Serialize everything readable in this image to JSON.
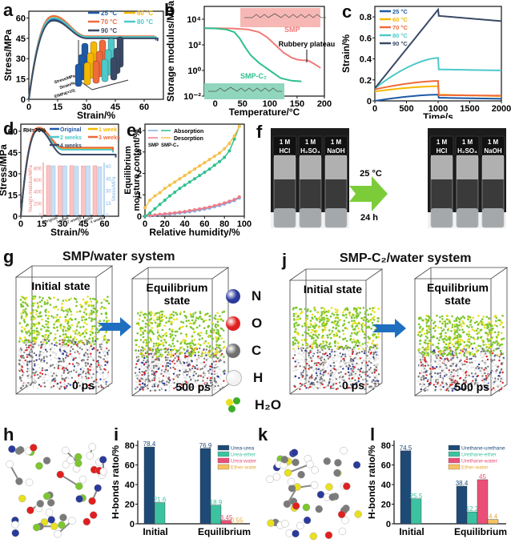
{
  "panels": {
    "a": {
      "label": "a"
    },
    "b": {
      "label": "b"
    },
    "c": {
      "label": "c"
    },
    "d": {
      "label": "d"
    },
    "e": {
      "label": "e"
    },
    "f": {
      "label": "f"
    },
    "g": {
      "label": "g",
      "title": "SMP/water system"
    },
    "h": {
      "label": "h"
    },
    "i": {
      "label": "i"
    },
    "j": {
      "label": "j",
      "title": "SMP-C₂/water system"
    },
    "k": {
      "label": "k"
    },
    "l": {
      "label": "l"
    }
  },
  "md": {
    "initial": "Initial state",
    "equilibrium_1": "Equilibrium",
    "equilibrium_2": "state",
    "t0": "0 ps",
    "t1": "500 ps",
    "atoms": [
      {
        "symbol": "N",
        "color": "#2a3a9a"
      },
      {
        "symbol": "O",
        "color": "#e02020"
      },
      {
        "symbol": "C",
        "color": "#6f6f6f"
      },
      {
        "symbol": "H",
        "color": "#f2f2f2"
      },
      {
        "symbol": "H₂O",
        "color": "#7cc62e"
      }
    ]
  },
  "photo_f": {
    "vials": [
      "HCl",
      "H₂SO₄",
      "NaOH"
    ],
    "conc": "1 M",
    "arrow_top": "25 °C",
    "arrow_bottom": "24 h"
  },
  "chart_data": [
    {
      "id": "a",
      "type": "line",
      "xlabel": "Strain/%",
      "ylabel": "Stress/MPa",
      "xlim": [
        0,
        70
      ],
      "ylim": [
        0,
        65
      ],
      "xticks": [
        0,
        15,
        30,
        45,
        60
      ],
      "yticks": [
        0,
        15,
        30,
        45,
        60
      ],
      "legend_position": "top-right",
      "series": [
        {
          "name": "25 °C",
          "color": "#1f5aa6",
          "peak": 59,
          "plateau": 45.5,
          "end": 66
        },
        {
          "name": "60 °C",
          "color": "#f5b800",
          "peak": 61,
          "plateau": 46,
          "end": 66
        },
        {
          "name": "70 °C",
          "color": "#f06a3a",
          "peak": 61.5,
          "plateau": 46.5,
          "end": 65
        },
        {
          "name": "80 °C",
          "color": "#4ec9c9",
          "peak": 60,
          "plateau": 46,
          "end": 66
        },
        {
          "name": "90 °C",
          "color": "#3a4a66",
          "peak": 58,
          "plateau": 45,
          "end": 67
        }
      ],
      "inset": {
        "type": "bar3d",
        "axes": [
          "Stress/MPa",
          "Strain/%",
          "E/MPa(×10)"
        ],
        "categories": [
          "25 °C",
          "60 °C",
          "70 °C",
          "80 °C",
          "90 °C"
        ],
        "ymax": 100
      }
    },
    {
      "id": "b",
      "type": "line",
      "xlabel": "Temperature/°C",
      "ylabel": "Storage modulus/MPa",
      "xlim": [
        -20,
        200
      ],
      "ylog": true,
      "ylim_exp": [
        -2,
        5
      ],
      "xticks": [
        0,
        50,
        100,
        150,
        200
      ],
      "yticks": [
        "10⁻²",
        "10⁰",
        "10²",
        "10⁴"
      ],
      "annotations": [
        "SMP",
        "SMP-C₂",
        "Rubbery plateau"
      ],
      "series": [
        {
          "name": "SMP",
          "color": "#f07a78",
          "x": [
            -20,
            0,
            30,
            60,
            80,
            95,
            110,
            125,
            140,
            150,
            160,
            170,
            180,
            193
          ],
          "logy": [
            3.3,
            3.3,
            3.28,
            3.2,
            3.0,
            2.6,
            2.0,
            1.4,
            1.0,
            0.85,
            0.8,
            0.78,
            0.55,
            0.2
          ]
        },
        {
          "name": "SMP-C₂",
          "color": "#2fbf8f",
          "x": [
            -20,
            0,
            20,
            35,
            45,
            55,
            65,
            80,
            100,
            120,
            140,
            158
          ],
          "logy": [
            3.3,
            3.28,
            3.2,
            3.0,
            2.5,
            1.8,
            1.2,
            0.6,
            0.0,
            -0.6,
            -0.8,
            -0.85
          ]
        }
      ]
    },
    {
      "id": "c",
      "type": "line",
      "xlabel": "Time/s",
      "ylabel": "Strain/%",
      "xlim": [
        0,
        2000
      ],
      "ylim": [
        0,
        0.9
      ],
      "xticks": [
        0,
        500,
        1000,
        1500,
        2000
      ],
      "yticks": [
        0,
        0.2,
        0.4,
        0.6,
        0.8
      ],
      "legend_position": "top-left",
      "series": [
        {
          "name": "25 °C",
          "color": "#1f5aa6",
          "start": 0.0,
          "peak": 0.06,
          "after": 0.03,
          "end": 0.02
        },
        {
          "name": "60 °C",
          "color": "#f5b800",
          "start": 0.09,
          "peak": 0.14,
          "after": 0.06,
          "end": 0.045
        },
        {
          "name": "70 °C",
          "color": "#f06a3a",
          "start": 0.11,
          "peak": 0.19,
          "after": 0.055,
          "end": 0.05
        },
        {
          "name": "80 °C",
          "color": "#4ec9c9",
          "start": 0.12,
          "peak": 0.41,
          "after": 0.3,
          "end": 0.29
        },
        {
          "name": "90 °C",
          "color": "#3a4a66",
          "start": 0.12,
          "peak": 0.87,
          "after": 0.81,
          "end": 0.76
        }
      ]
    },
    {
      "id": "d",
      "type": "line",
      "xlabel": "Strain/%",
      "ylabel": "Stress/MPa",
      "xlim": [
        0,
        70
      ],
      "ylim": [
        0,
        65
      ],
      "xticks": [
        0,
        15,
        30,
        45,
        60
      ],
      "yticks": [
        0,
        15,
        30,
        45,
        60
      ],
      "annotation": "RH=70%",
      "series": [
        {
          "name": "Original",
          "color": "#1f5aa6",
          "peak": 62,
          "plateau": 48,
          "end": 66
        },
        {
          "name": "1 week",
          "color": "#f5b800",
          "peak": 62,
          "plateau": 47.5,
          "end": 66
        },
        {
          "name": "2 weeks",
          "color": "#4ec9c9",
          "peak": 61.5,
          "plateau": 47,
          "end": 66
        },
        {
          "name": "3 weeks",
          "color": "#f06a3a",
          "peak": 62.5,
          "plateau": 48.5,
          "end": 66
        },
        {
          "name": "4 weeks",
          "color": "#3a4a66",
          "peak": 61,
          "plateau": 43.5,
          "end": 68
        }
      ],
      "inset": {
        "type": "bar",
        "categories": [
          "Original",
          "1 week",
          "2 weeks",
          "3 weeks",
          "4 weeks"
        ],
        "left_axis": "Young's modulus/MPa",
        "left_ticks": [
          0,
          200,
          400,
          600,
          800
        ],
        "right_axis": "Stress/MPa",
        "right_ticks": [
          0,
          15,
          30,
          45,
          60
        ],
        "modulus": [
          850,
          845,
          848,
          842,
          846
        ],
        "stress": [
          61,
          61,
          60.5,
          61,
          60
        ]
      }
    },
    {
      "id": "e",
      "type": "line",
      "xlabel": "Relative humidity/%",
      "ylabel": "Equilibrium moisture content/%",
      "xlim": [
        0,
        100
      ],
      "ylim": [
        0,
        4.3
      ],
      "xticks": [
        0,
        20,
        40,
        60,
        80,
        100
      ],
      "yticks": [
        0,
        1,
        2,
        3,
        4
      ],
      "legend": [
        "Absorption",
        "Desorption",
        "SMP",
        "SMP-C₂"
      ],
      "x": [
        0,
        5,
        10,
        15,
        20,
        25,
        30,
        35,
        40,
        45,
        50,
        55,
        60,
        65,
        70,
        75,
        80,
        85,
        90,
        95
      ],
      "series": [
        {
          "name": "SMP Absorption",
          "color": "#7fb2e5",
          "values": [
            0.0,
            0.02,
            0.04,
            0.06,
            0.08,
            0.1,
            0.12,
            0.15,
            0.18,
            0.21,
            0.25,
            0.29,
            0.33,
            0.38,
            0.44,
            0.5,
            0.57,
            0.65,
            0.73,
            0.85
          ]
        },
        {
          "name": "SMP Desorption",
          "color": "#f07a88",
          "values": [
            0.0,
            0.04,
            0.06,
            0.09,
            0.11,
            0.13,
            0.16,
            0.19,
            0.22,
            0.26,
            0.3,
            0.34,
            0.38,
            0.43,
            0.49,
            0.55,
            0.62,
            0.7,
            0.78,
            0.9
          ]
        },
        {
          "name": "SMP-C₂ Absorption",
          "color": "#2fbf8f",
          "values": [
            0.0,
            0.15,
            0.35,
            0.55,
            0.75,
            0.95,
            1.12,
            1.3,
            1.45,
            1.6,
            1.75,
            1.9,
            2.05,
            2.2,
            2.38,
            2.55,
            2.75,
            3.05,
            3.6,
            4.2
          ]
        },
        {
          "name": "SMP-C₂ Desorption",
          "color": "#f5c04a",
          "values": [
            0.4,
            0.75,
            0.95,
            1.1,
            1.3,
            1.45,
            1.6,
            1.75,
            1.9,
            2.05,
            2.2,
            2.35,
            2.5,
            2.65,
            2.8,
            2.95,
            3.15,
            3.4,
            3.75,
            4.2
          ]
        }
      ]
    },
    {
      "id": "i",
      "type": "bar",
      "ylabel": "H-bonds ratio/%",
      "ylim": [
        0,
        85
      ],
      "yticks": [
        0,
        20,
        40,
        60,
        80
      ],
      "categories": [
        "Initial",
        "Equilibrium"
      ],
      "legend_position": "top-right",
      "series": [
        {
          "name": "Urea-urea",
          "color": "#1e4a78",
          "values": [
            78.4,
            76.9
          ]
        },
        {
          "name": "Urea-ether",
          "color": "#3cc2a0",
          "values": [
            21.6,
            18.9
          ]
        },
        {
          "name": "Urea-water",
          "color": "#ea4f78",
          "values": [
            null,
            3.45
          ]
        },
        {
          "name": "Ether-water",
          "color": "#f8c060",
          "values": [
            null,
            0.55
          ]
        }
      ]
    },
    {
      "id": "l",
      "type": "bar",
      "ylabel": "H-bonds ratio/%",
      "ylim": [
        0,
        85
      ],
      "yticks": [
        0,
        20,
        40,
        60,
        80
      ],
      "categories": [
        "Initial",
        "Equilibrium"
      ],
      "legend_position": "top-right",
      "series": [
        {
          "name": "Urethane-urethane",
          "color": "#1e4a78",
          "values": [
            74.5,
            38.4
          ]
        },
        {
          "name": "Urethane-ether",
          "color": "#3cc2a0",
          "values": [
            25.5,
            12.2
          ]
        },
        {
          "name": "Urethane-water",
          "color": "#ea4f78",
          "values": [
            null,
            45
          ]
        },
        {
          "name": "Ether-water",
          "color": "#f8c060",
          "values": [
            null,
            4.4
          ]
        }
      ]
    }
  ]
}
